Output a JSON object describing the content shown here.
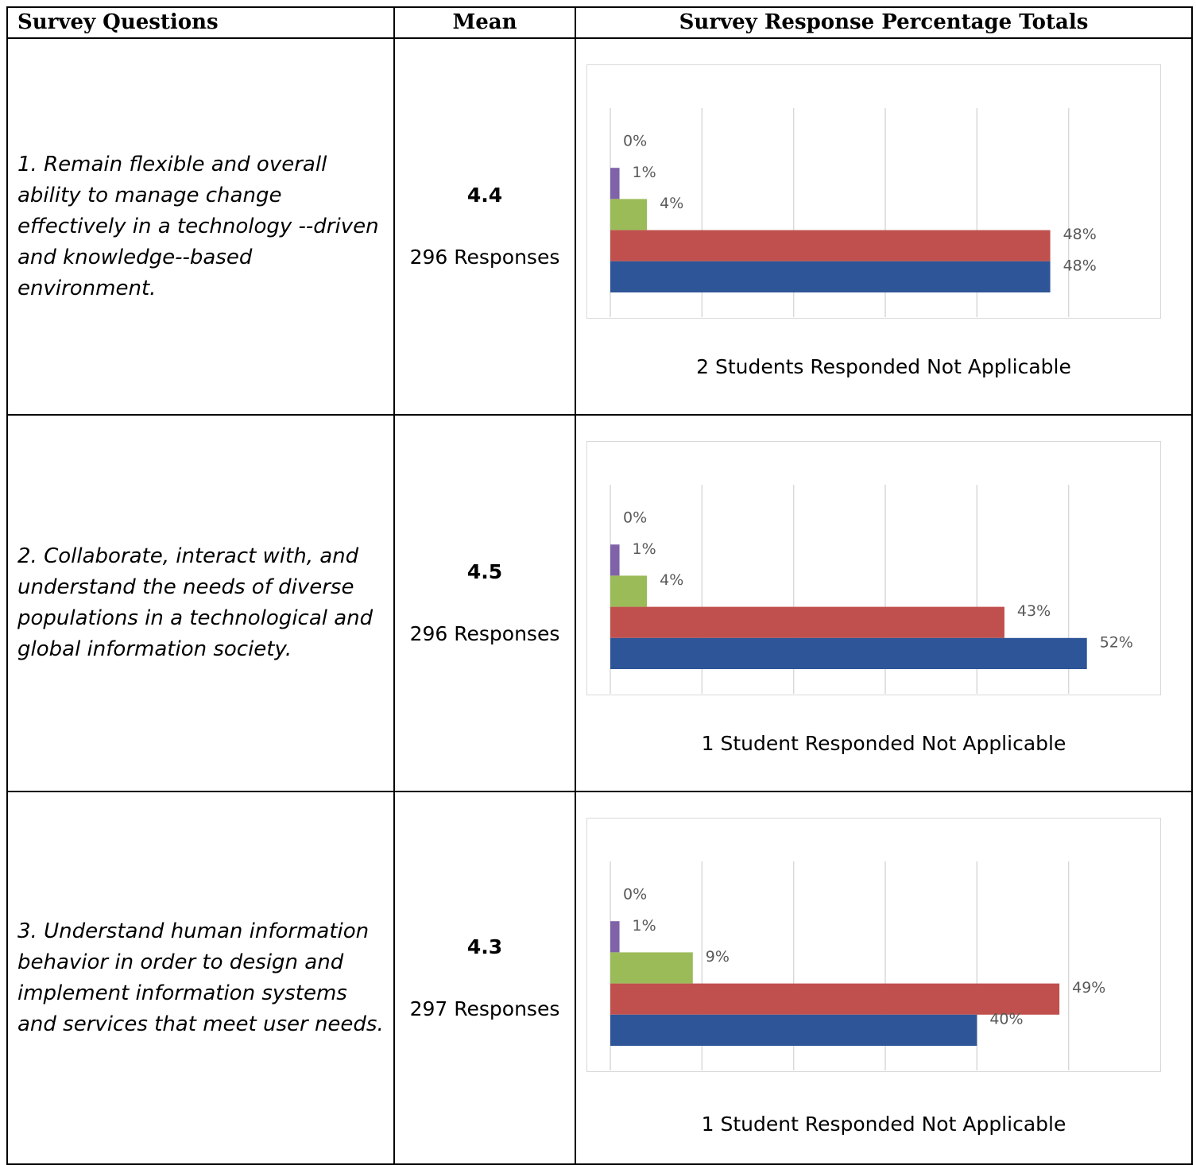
{
  "headers": {
    "question": "Survey Questions",
    "mean": "Mean",
    "chart": "Survey Response Percentage Totals"
  },
  "colors": {
    "series": [
      "#7f62a8",
      "#9bbb59",
      "#c0504d",
      "#2e5597"
    ],
    "gridline": "#d9d9d9",
    "label": "#595959"
  },
  "rows": [
    {
      "question": "1. Remain flexible and overall ability to manage change effectively in a technology --driven and knowledge--based environment.",
      "mean": "4.4",
      "responses": "296 Responses",
      "note": "2 Students Responded Not Applicable"
    },
    {
      "question": "2. Collaborate, interact with, and understand the needs of diverse populations in a technological and global information society.",
      "mean": "4.5",
      "responses": "296 Responses",
      "note": "1 Student Responded Not Applicable"
    },
    {
      "question": "3. Understand human information behavior in order to design and implement information systems and services that meet user needs.",
      "mean": "4.3",
      "responses": "297 Responses",
      "note": "1 Student Responded Not Applicable"
    }
  ],
  "chart_data": [
    {
      "type": "bar",
      "orientation": "horizontal",
      "values": [
        0,
        1,
        4,
        48,
        48
      ],
      "labels": [
        "0%",
        "1%",
        "4%",
        "48%",
        "48%"
      ],
      "xlim": [
        0,
        60
      ],
      "grid": true,
      "legend": "none"
    },
    {
      "type": "bar",
      "orientation": "horizontal",
      "values": [
        0,
        1,
        4,
        43,
        52
      ],
      "labels": [
        "0%",
        "1%",
        "4%",
        "43%",
        "52%"
      ],
      "xlim": [
        0,
        60
      ],
      "grid": true,
      "legend": "none"
    },
    {
      "type": "bar",
      "orientation": "horizontal",
      "values": [
        0,
        1,
        9,
        49,
        40
      ],
      "labels": [
        "0%",
        "1%",
        "9%",
        "49%",
        "40%"
      ],
      "xlim": [
        0,
        60
      ],
      "grid": true,
      "legend": "none"
    }
  ]
}
